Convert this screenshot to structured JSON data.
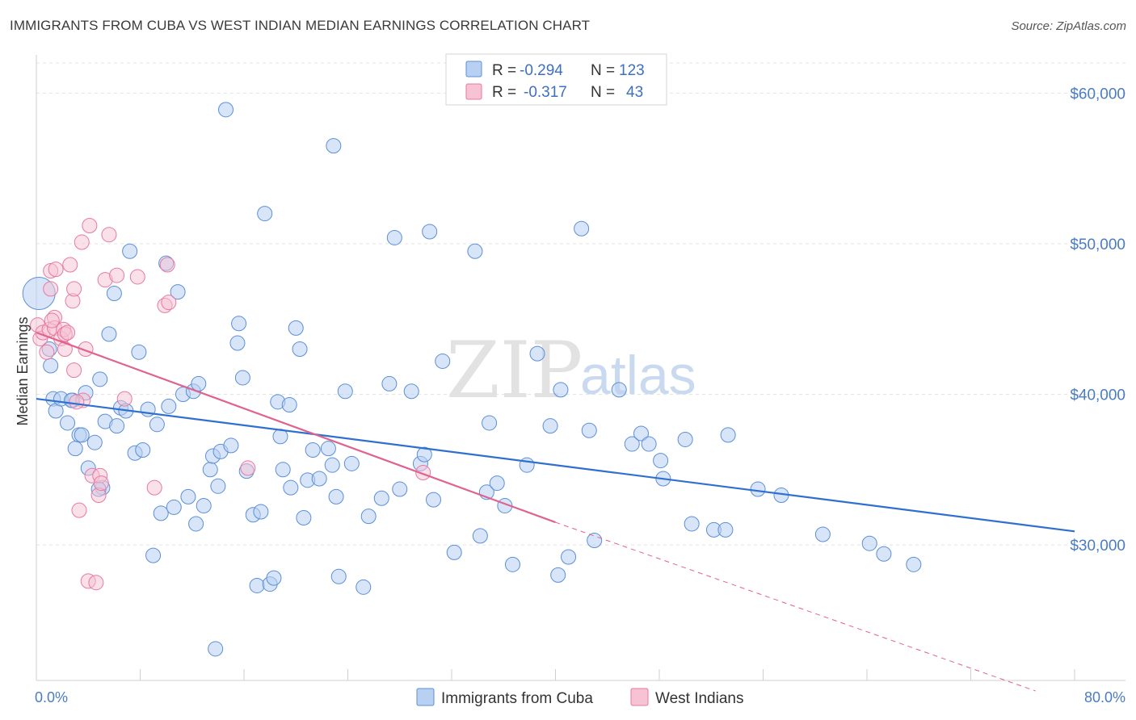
{
  "title": "IMMIGRANTS FROM CUBA VS WEST INDIAN MEDIAN EARNINGS CORRELATION CHART",
  "source": "Source: ZipAtlas.com",
  "watermark": {
    "zip": "ZIP",
    "atlas": "atlas"
  },
  "colors": {
    "blue": "#5b8fd6",
    "blue_fill": "#b8d0f2",
    "pink": "#e8799f",
    "pink_fill": "#f6c2d4",
    "blue_line": "#2f6fd0",
    "pink_line": "#e0628f"
  },
  "legend": {
    "rows": [
      {
        "r_label": "R =",
        "r_value": "-0.294",
        "n_label": "N =",
        "n_value": "123"
      },
      {
        "r_label": "R =",
        "r_value": "-0.317",
        "n_label": "N =",
        "n_value": "43"
      }
    ]
  },
  "chart_data": {
    "type": "scatter",
    "ylabel": "Median Earnings",
    "xlim": [
      0,
      80
    ],
    "ylim": [
      21000,
      62000
    ],
    "x_tick_labels": [
      "0.0%",
      "80.0%"
    ],
    "y_ticks": [
      30000,
      40000,
      50000,
      60000
    ],
    "y_tick_labels": [
      "$30,000",
      "$40,000",
      "$50,000",
      "$60,000"
    ],
    "grid": true,
    "legend_position": "top-center",
    "series": [
      {
        "name": "Immigrants from Cuba",
        "color": "#5b8fd6",
        "trend": {
          "x": [
            0,
            80
          ],
          "y": [
            39700,
            30900
          ]
        },
        "points": [
          [
            0.2,
            46700
          ],
          [
            1.0,
            43000
          ],
          [
            1.1,
            41900
          ],
          [
            1.3,
            39700
          ],
          [
            1.5,
            38900
          ],
          [
            1.9,
            39700
          ],
          [
            2.4,
            38100
          ],
          [
            2.8,
            39600
          ],
          [
            3.3,
            37300
          ],
          [
            3.0,
            36400
          ],
          [
            3.5,
            37300
          ],
          [
            3.8,
            40100
          ],
          [
            4.0,
            35100
          ],
          [
            4.5,
            36800
          ],
          [
            4.9,
            41000
          ],
          [
            5.1,
            33800
          ],
          [
            5.3,
            38200
          ],
          [
            5.6,
            44000
          ],
          [
            6.0,
            46700
          ],
          [
            6.2,
            37900
          ],
          [
            6.5,
            39100
          ],
          [
            6.9,
            38900
          ],
          [
            7.2,
            49500
          ],
          [
            7.6,
            36100
          ],
          [
            7.9,
            42800
          ],
          [
            8.2,
            36300
          ],
          [
            8.6,
            39000
          ],
          [
            9.0,
            29300
          ],
          [
            9.3,
            38000
          ],
          [
            9.6,
            32100
          ],
          [
            10.0,
            48700
          ],
          [
            10.2,
            39200
          ],
          [
            10.6,
            32500
          ],
          [
            10.9,
            46800
          ],
          [
            11.3,
            40000
          ],
          [
            11.7,
            33200
          ],
          [
            12.1,
            40200
          ],
          [
            12.3,
            31400
          ],
          [
            12.5,
            40700
          ],
          [
            12.9,
            32600
          ],
          [
            13.4,
            35000
          ],
          [
            13.6,
            35900
          ],
          [
            14.0,
            33900
          ],
          [
            14.2,
            36200
          ],
          [
            14.6,
            58900
          ],
          [
            15.0,
            36600
          ],
          [
            15.5,
            43400
          ],
          [
            15.6,
            44700
          ],
          [
            15.9,
            41100
          ],
          [
            16.2,
            34900
          ],
          [
            16.7,
            32000
          ],
          [
            17.0,
            27300
          ],
          [
            17.3,
            32200
          ],
          [
            17.6,
            52000
          ],
          [
            18.0,
            27400
          ],
          [
            18.3,
            27800
          ],
          [
            18.6,
            39500
          ],
          [
            18.8,
            37200
          ],
          [
            19.0,
            35000
          ],
          [
            19.5,
            39300
          ],
          [
            19.6,
            33800
          ],
          [
            20.0,
            44400
          ],
          [
            20.3,
            43000
          ],
          [
            20.6,
            31800
          ],
          [
            20.9,
            34300
          ],
          [
            21.3,
            36300
          ],
          [
            21.8,
            34400
          ],
          [
            22.5,
            36400
          ],
          [
            22.8,
            35300
          ],
          [
            22.9,
            56500
          ],
          [
            23.1,
            33200
          ],
          [
            23.3,
            27900
          ],
          [
            23.8,
            40200
          ],
          [
            24.3,
            35400
          ],
          [
            25.2,
            27200
          ],
          [
            25.6,
            31900
          ],
          [
            26.6,
            33100
          ],
          [
            27.2,
            40700
          ],
          [
            27.6,
            50400
          ],
          [
            28.0,
            33700
          ],
          [
            28.9,
            40200
          ],
          [
            29.6,
            35400
          ],
          [
            29.9,
            36000
          ],
          [
            30.3,
            50800
          ],
          [
            30.6,
            33000
          ],
          [
            31.3,
            42200
          ],
          [
            32.2,
            29500
          ],
          [
            33.8,
            49500
          ],
          [
            34.2,
            30600
          ],
          [
            34.7,
            33500
          ],
          [
            34.9,
            38100
          ],
          [
            35.5,
            34100
          ],
          [
            36.1,
            32600
          ],
          [
            36.7,
            28700
          ],
          [
            37.8,
            35300
          ],
          [
            38.6,
            42700
          ],
          [
            39.6,
            37900
          ],
          [
            40.2,
            28000
          ],
          [
            40.4,
            40300
          ],
          [
            41.0,
            29200
          ],
          [
            42.0,
            51000
          ],
          [
            42.6,
            37600
          ],
          [
            43.0,
            30300
          ],
          [
            44.9,
            40300
          ],
          [
            45.9,
            36700
          ],
          [
            46.6,
            37400
          ],
          [
            47.2,
            36700
          ],
          [
            48.1,
            35600
          ],
          [
            48.3,
            34400
          ],
          [
            50.0,
            37000
          ],
          [
            50.5,
            31400
          ],
          [
            52.2,
            31000
          ],
          [
            53.1,
            31000
          ],
          [
            53.3,
            37300
          ],
          [
            55.6,
            33700
          ],
          [
            57.4,
            33300
          ],
          [
            60.6,
            30700
          ],
          [
            64.2,
            30100
          ],
          [
            65.3,
            29400
          ],
          [
            67.6,
            28700
          ],
          [
            13.8,
            23100
          ],
          [
            2.7,
            39600
          ],
          [
            4.8,
            33700
          ]
        ]
      },
      {
        "name": "West Indians",
        "color": "#e8799f",
        "trend": {
          "x": [
            0,
            40
          ],
          "y": [
            44100,
            31500
          ]
        },
        "trend_extension": {
          "x": [
            40,
            77
          ],
          "y": [
            31500,
            20300
          ]
        },
        "points": [
          [
            0.1,
            44600
          ],
          [
            0.3,
            43700
          ],
          [
            0.5,
            44100
          ],
          [
            0.8,
            42800
          ],
          [
            1.0,
            44300
          ],
          [
            1.1,
            47000
          ],
          [
            1.1,
            48200
          ],
          [
            1.4,
            45100
          ],
          [
            1.4,
            44400
          ],
          [
            1.5,
            48300
          ],
          [
            1.9,
            43700
          ],
          [
            2.1,
            44300
          ],
          [
            2.2,
            44000
          ],
          [
            2.2,
            43000
          ],
          [
            2.4,
            44100
          ],
          [
            2.6,
            48600
          ],
          [
            2.8,
            46200
          ],
          [
            2.9,
            41600
          ],
          [
            2.9,
            47000
          ],
          [
            3.3,
            32300
          ],
          [
            3.5,
            50100
          ],
          [
            3.6,
            39600
          ],
          [
            3.8,
            43000
          ],
          [
            4.0,
            27600
          ],
          [
            4.1,
            51200
          ],
          [
            4.3,
            34600
          ],
          [
            4.6,
            27500
          ],
          [
            4.8,
            33300
          ],
          [
            4.9,
            34600
          ],
          [
            5.0,
            34100
          ],
          [
            5.3,
            47600
          ],
          [
            5.6,
            50600
          ],
          [
            6.2,
            47900
          ],
          [
            6.8,
            39700
          ],
          [
            7.8,
            47800
          ],
          [
            9.1,
            33800
          ],
          [
            9.9,
            45900
          ],
          [
            10.1,
            48600
          ],
          [
            10.2,
            46100
          ],
          [
            16.3,
            35100
          ],
          [
            29.8,
            34800
          ],
          [
            1.2,
            44900
          ],
          [
            3.1,
            39500
          ]
        ]
      }
    ]
  }
}
